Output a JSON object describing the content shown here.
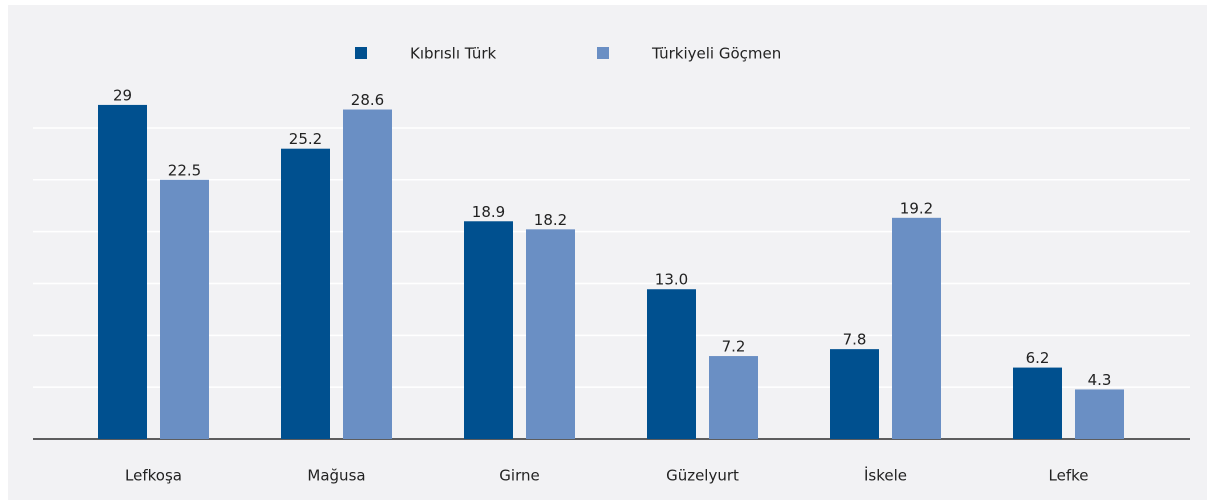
{
  "chart_data": {
    "type": "bar",
    "categories": [
      "Lefkoşa",
      "Mağusa",
      "Girne",
      "Güzelyurt",
      "İskele",
      "Lefke"
    ],
    "series": [
      {
        "name": "Kıbrıslı Türk",
        "color": "#00508f",
        "values": [
          29,
          25.2,
          18.9,
          13.0,
          7.8,
          6.2
        ],
        "value_labels": [
          "29",
          "25.2",
          "18.9",
          "13.0",
          "7.8",
          "6.2"
        ]
      },
      {
        "name": "Türkiyeli Göçmen",
        "color": "#6a8fc4",
        "values": [
          22.5,
          28.6,
          18.2,
          7.2,
          19.2,
          4.3
        ],
        "value_labels": [
          "22.5",
          "28.6",
          "18.2",
          "7.2",
          "19.2",
          "4.3"
        ]
      }
    ],
    "ylim": [
      0,
      37
    ],
    "yticks": [
      0,
      4.5,
      9,
      13.5,
      18,
      22.5,
      27
    ],
    "grid": true
  }
}
